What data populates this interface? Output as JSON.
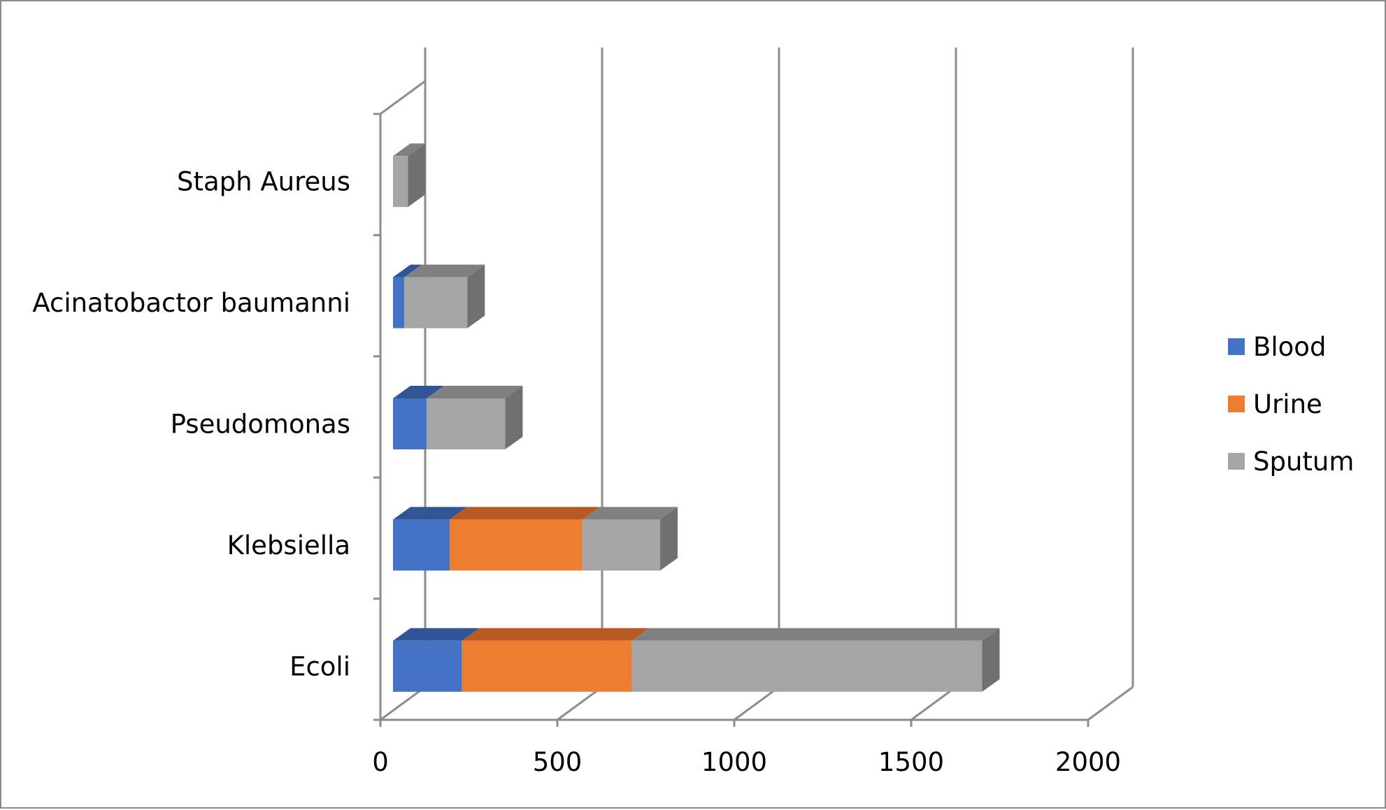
{
  "chart_data": {
    "type": "bar",
    "orientation": "horizontal",
    "stacked": true,
    "three_d": true,
    "categories": [
      "Ecoli",
      "Klebsiella",
      "Pseudomonas",
      "Acinatobactor baumanni",
      "Staph Aureus"
    ],
    "series": [
      {
        "name": "Blood",
        "color": "#4472C4",
        "top_color": "#2F5597",
        "side_color": "#2F5597",
        "values": [
          195,
          160,
          95,
          32,
          0
        ]
      },
      {
        "name": "Urine",
        "color": "#ED7D31",
        "top_color": "#B85A22",
        "side_color": "#B85A22",
        "values": [
          480,
          375,
          0,
          0,
          0
        ]
      },
      {
        "name": "Sputum",
        "color": "#A5A5A5",
        "top_color": "#808080",
        "side_color": "#707070",
        "values": [
          990,
          220,
          222,
          178,
          42
        ]
      }
    ],
    "x_ticks": [
      0,
      500,
      1000,
      1500,
      2000
    ],
    "xlim": [
      0,
      2000
    ],
    "grid": true,
    "legend_position": "right",
    "title": "",
    "xlabel": "",
    "ylabel": ""
  }
}
